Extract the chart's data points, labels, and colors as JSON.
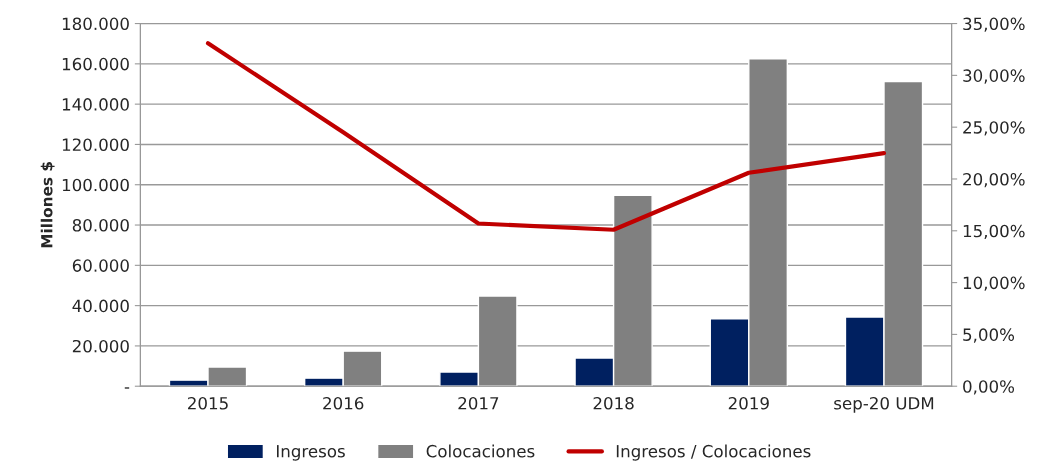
{
  "chart_data": {
    "type": "bar",
    "ylabel": "Millones $",
    "categories": [
      "2015",
      "2016",
      "2017",
      "2018",
      "2019",
      "sep-20 UDM"
    ],
    "series": [
      {
        "name": "Ingresos",
        "color": "#002060",
        "values": [
          3000,
          4000,
          7000,
          14000,
          33400,
          34300
        ]
      },
      {
        "name": "Colocaciones",
        "color": "#808080",
        "values": [
          9500,
          17400,
          44800,
          94700,
          162500,
          151200
        ]
      },
      {
        "name": "Ingresos / Colocaciones",
        "type": "line",
        "axis": "y2",
        "color": "#c00000",
        "values": [
          33.1,
          24.5,
          15.7,
          15.1,
          20.6,
          22.5
        ]
      }
    ],
    "ylim": [
      0,
      180000
    ],
    "yticks": [
      {
        "value": 0,
        "label": "-"
      },
      {
        "value": 20000,
        "label": "20.000"
      },
      {
        "value": 40000,
        "label": "40.000"
      },
      {
        "value": 60000,
        "label": "60.000"
      },
      {
        "value": 80000,
        "label": "80.000"
      },
      {
        "value": 100000,
        "label": "100.000"
      },
      {
        "value": 120000,
        "label": "120.000"
      },
      {
        "value": 140000,
        "label": "140.000"
      },
      {
        "value": 160000,
        "label": "160.000"
      },
      {
        "value": 180000,
        "label": "180.000"
      }
    ],
    "y2lim": [
      0,
      35
    ],
    "y2ticks": [
      {
        "value": 0,
        "label": "0,00%"
      },
      {
        "value": 5,
        "label": "5,00%"
      },
      {
        "value": 10,
        "label": "10,00%"
      },
      {
        "value": 15,
        "label": "15,00%"
      },
      {
        "value": 20,
        "label": "20,00%"
      },
      {
        "value": 25,
        "label": "25,00%"
      },
      {
        "value": 30,
        "label": "30,00%"
      },
      {
        "value": 35,
        "label": "35,00%"
      }
    ],
    "grid": "y",
    "legend": "bottom",
    "line_style": "solid",
    "marker": "none"
  }
}
